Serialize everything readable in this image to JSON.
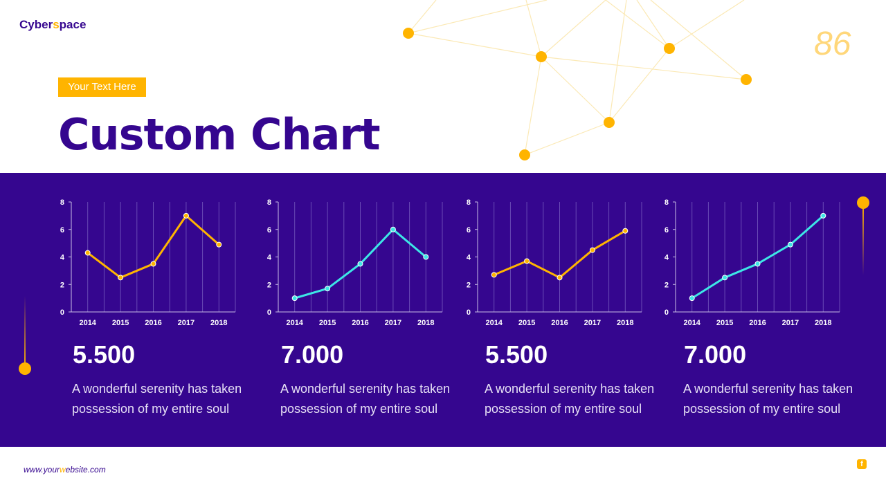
{
  "header": {
    "logo_a": "Cyber",
    "logo_b": "s",
    "logo_c": "pace",
    "page_number": "86",
    "tag": "Your Text Here",
    "title": "Custom Chart"
  },
  "colors": {
    "purple": "#35068f",
    "orange": "#ffb400",
    "cyan": "#3de6e6"
  },
  "chart_data": [
    {
      "type": "line",
      "categories": [
        "2014",
        "2015",
        "2016",
        "2017",
        "2018"
      ],
      "values": [
        4.3,
        2.5,
        3.5,
        7,
        4.9
      ],
      "ylim": [
        0,
        8
      ],
      "yticks": [
        "0",
        "2",
        "4",
        "6",
        "8"
      ],
      "color": "#ffb400"
    },
    {
      "type": "line",
      "categories": [
        "2014",
        "2015",
        "2016",
        "2017",
        "2018"
      ],
      "values": [
        1,
        1.7,
        3.5,
        6,
        4
      ],
      "ylim": [
        0,
        8
      ],
      "yticks": [
        "0",
        "2",
        "4",
        "6",
        "8"
      ],
      "color": "#3de6e6"
    },
    {
      "type": "line",
      "categories": [
        "2014",
        "2015",
        "2016",
        "2017",
        "2018"
      ],
      "values": [
        2.7,
        3.7,
        2.5,
        4.5,
        5.9
      ],
      "ylim": [
        0,
        8
      ],
      "yticks": [
        "0",
        "2",
        "4",
        "6",
        "8"
      ],
      "color": "#ffb400"
    },
    {
      "type": "line",
      "categories": [
        "2014",
        "2015",
        "2016",
        "2017",
        "2018"
      ],
      "values": [
        1,
        2.5,
        3.5,
        4.9,
        7
      ],
      "ylim": [
        0,
        8
      ],
      "yticks": [
        "0",
        "2",
        "4",
        "6",
        "8"
      ],
      "color": "#3de6e6"
    }
  ],
  "cards": [
    {
      "value": "5.500",
      "text": "A wonderful serenity has taken possession of my entire soul"
    },
    {
      "value": "7.000",
      "text": "A wonderful serenity has taken possession of my entire soul"
    },
    {
      "value": "5.500",
      "text": "A wonderful serenity has taken possession of my entire soul"
    },
    {
      "value": "7.000",
      "text": "A wonderful serenity has taken possession of my entire soul"
    }
  ],
  "footer": {
    "url_a": "www.your",
    "url_b": "w",
    "url_c": "ebsite.com",
    "social_icon": "facebook-icon"
  }
}
